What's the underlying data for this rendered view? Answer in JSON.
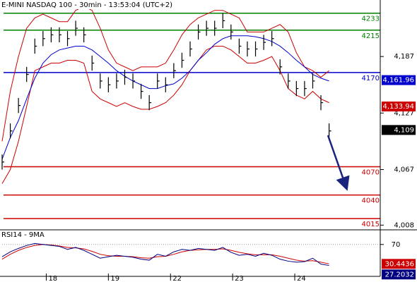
{
  "chart_data": [
    {
      "type": "hlc",
      "title": "E-MINI NASDAQ 100 - 30min - 13:53:04 (UTC+2)",
      "x": [
        0,
        5,
        10,
        15,
        20,
        25,
        30,
        35,
        40,
        45,
        50,
        55,
        60,
        65,
        70,
        75,
        80,
        85,
        90,
        95,
        100,
        105,
        110,
        115,
        120,
        125,
        130,
        135,
        140,
        145,
        150,
        155,
        160,
        165,
        170,
        175,
        180,
        185,
        190,
        195,
        200
      ],
      "high": [
        4083,
        4116,
        4143,
        4176,
        4206,
        4214,
        4218,
        4218,
        4214,
        4225,
        4218,
        4188,
        4169,
        4165,
        4169,
        4173,
        4169,
        4158,
        4146,
        4169,
        4165,
        4180,
        4191,
        4203,
        4221,
        4225,
        4225,
        4233,
        4221,
        4206,
        4203,
        4203,
        4210,
        4214,
        4184,
        4169,
        4161,
        4161,
        4169,
        4146,
        4116
      ],
      "low": [
        4067,
        4100,
        4127,
        4160,
        4190,
        4198,
        4202,
        4202,
        4198,
        4209,
        4202,
        4172,
        4153,
        4149,
        4153,
        4157,
        4153,
        4142,
        4130,
        4153,
        4149,
        4164,
        4175,
        4187,
        4205,
        4209,
        4209,
        4217,
        4205,
        4190,
        4187,
        4187,
        4194,
        4198,
        4168,
        4153,
        4145,
        4145,
        4153,
        4130,
        4100
      ],
      "close": [
        4075,
        4108,
        4135,
        4168,
        4198,
        4206,
        4210,
        4210,
        4206,
        4217,
        4210,
        4180,
        4161,
        4157,
        4161,
        4165,
        4161,
        4150,
        4138,
        4161,
        4157,
        4172,
        4183,
        4195,
        4213,
        4217,
        4217,
        4225,
        4213,
        4198,
        4195,
        4195,
        4202,
        4206,
        4176,
        4161,
        4153,
        4153,
        4161,
        4138,
        4108
      ],
      "color": "#000000",
      "overlays": [
        {
          "color": "#cc0000",
          "values": [
            4097,
            4150,
            4187,
            4217,
            4228,
            4232,
            4228,
            4224,
            4224,
            4236,
            4240,
            4236,
            4217,
            4194,
            4180,
            4176,
            4172,
            4176,
            4176,
            4176,
            4180,
            4194,
            4210,
            4221,
            4228,
            4232,
            4236,
            4236,
            4232,
            4228,
            4213,
            4213,
            4213,
            4217,
            4221,
            4213,
            4191,
            4176,
            4172,
            4165,
            4172
          ]
        },
        {
          "color": "#cc0000",
          "values": [
            4052,
            4067,
            4097,
            4134,
            4172,
            4176,
            4180,
            4180,
            4183,
            4183,
            4180,
            4150,
            4142,
            4138,
            4134,
            4138,
            4134,
            4131,
            4131,
            4134,
            4138,
            4146,
            4157,
            4172,
            4183,
            4194,
            4198,
            4198,
            4194,
            4187,
            4180,
            4180,
            4183,
            4187,
            4172,
            4153,
            4146,
            4142,
            4150,
            4142,
            4138
          ]
        },
        {
          "color": "#0000cc",
          "values": [
            4078,
            4101,
            4119,
            4142,
            4164,
            4180,
            4189,
            4194,
            4196,
            4198,
            4198,
            4194,
            4187,
            4180,
            4172,
            4166,
            4161,
            4157,
            4153,
            4153,
            4156,
            4158,
            4164,
            4172,
            4183,
            4191,
            4200,
            4206,
            4209,
            4209,
            4209,
            4208,
            4206,
            4203,
            4198,
            4191,
            4183,
            4176,
            4168,
            4164,
            4161
          ]
        }
      ],
      "xlim": [
        0,
        230
      ],
      "ylim": [
        4003,
        4247
      ],
      "yticks": [
        {
          "value": 4187,
          "label": "4,187"
        },
        {
          "value": 4127,
          "label": "4,127"
        },
        {
          "value": 4067,
          "label": "4,067"
        },
        {
          "value": 4008,
          "label": "4,008"
        }
      ],
      "levels": [
        {
          "value": 4233,
          "color": "#008000"
        },
        {
          "value": 4215,
          "color": "#008000"
        },
        {
          "value": 4170,
          "color": "#0000cc"
        },
        {
          "value": 4070,
          "color": "#cc0000"
        },
        {
          "value": 4040,
          "color": "#cc0000"
        },
        {
          "value": 4015,
          "color": "#cc0000"
        }
      ],
      "tags": [
        {
          "value": 4161.96,
          "label": "4,161.96",
          "color": "#0000cc"
        },
        {
          "value": 4133.94,
          "label": "4,133.94",
          "color": "#cc0000"
        },
        {
          "value": 4109,
          "label": "4,109",
          "color": "#000000"
        }
      ]
    },
    {
      "type": "line",
      "title": "RSI14 - 9MA",
      "x": [
        0,
        5,
        10,
        15,
        20,
        25,
        30,
        35,
        40,
        45,
        50,
        55,
        60,
        65,
        70,
        75,
        80,
        85,
        90,
        95,
        100,
        105,
        110,
        115,
        120,
        125,
        130,
        135,
        140,
        145,
        150,
        155,
        160,
        165,
        170,
        175,
        180,
        185,
        190,
        195,
        200
      ],
      "series": [
        {
          "color": "#cc0000",
          "values": [
            40,
            50,
            58,
            64,
            68,
            70,
            69,
            67,
            64,
            63,
            61,
            56,
            50,
            47,
            46,
            46,
            45,
            43,
            42,
            45,
            46,
            50,
            55,
            58,
            59,
            60,
            60,
            61,
            58,
            54,
            51,
            49,
            49,
            49,
            46,
            42,
            38,
            36,
            37,
            34,
            30.44
          ]
        },
        {
          "color": "#000080",
          "values": [
            45,
            55,
            62,
            68,
            72,
            70,
            68,
            66,
            60,
            64,
            58,
            50,
            42,
            45,
            48,
            46,
            44,
            40,
            38,
            50,
            46,
            55,
            60,
            58,
            62,
            60,
            58,
            64,
            54,
            48,
            50,
            46,
            52,
            48,
            40,
            36,
            34,
            35,
            42,
            30,
            27.2
          ]
        }
      ],
      "xlim": [
        0,
        230
      ],
      "xticks": [
        {
          "value": 27,
          "label": "18"
        },
        {
          "value": 65,
          "label": "19"
        },
        {
          "value": 103,
          "label": "22"
        },
        {
          "value": 141,
          "label": "23"
        },
        {
          "value": 179,
          "label": "24"
        }
      ],
      "ylim": [
        5,
        97
      ],
      "yticks": [
        70
      ],
      "grid": true,
      "tags": [
        {
          "value": 30.44,
          "label": "30.4436",
          "color": "#cc0000"
        },
        {
          "value": 27.2,
          "label": "27.2032",
          "color": "#000080"
        }
      ]
    }
  ]
}
